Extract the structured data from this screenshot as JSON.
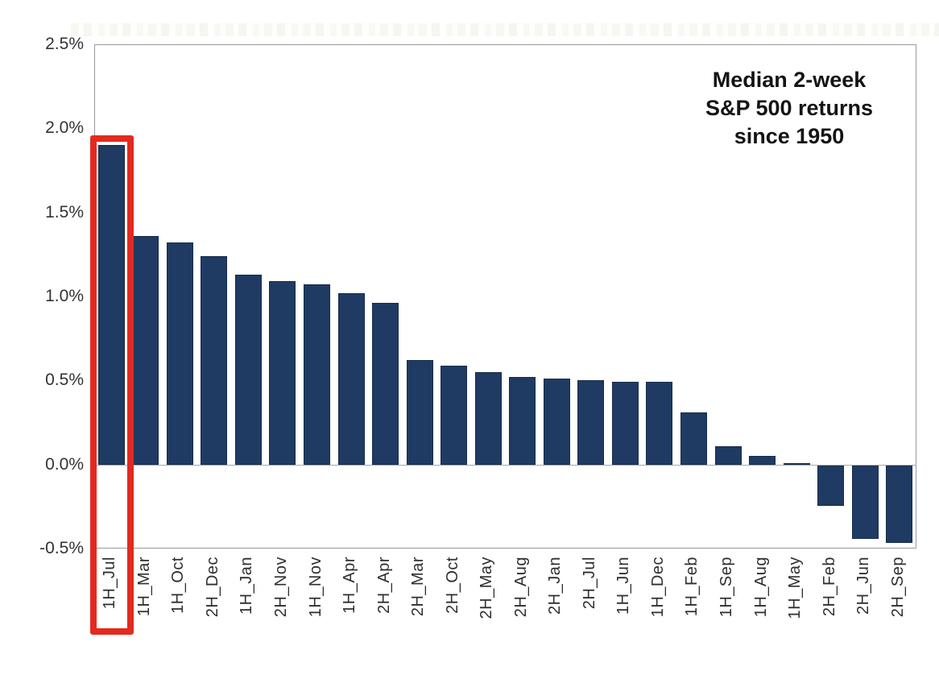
{
  "chart_data": {
    "type": "bar",
    "title": "Median 2-week S&P 500 returns since 1950",
    "title_lines": [
      "Median 2-week",
      "S&P 500 returns",
      "since 1950"
    ],
    "categories": [
      "1H_Jul",
      "1H_Mar",
      "1H_Oct",
      "2H_Dec",
      "1H_Jan",
      "2H_Nov",
      "1H_Nov",
      "1H_Apr",
      "2H_Apr",
      "2H_Mar",
      "2H_Oct",
      "2H_May",
      "2H_Aug",
      "2H_Jan",
      "2H_Jul",
      "1H_Jun",
      "1H_Dec",
      "1H_Feb",
      "1H_Sep",
      "1H_Aug",
      "1H_May",
      "2H_Feb",
      "2H_Jun",
      "2H_Sep"
    ],
    "values": [
      1.9,
      1.36,
      1.32,
      1.24,
      1.13,
      1.09,
      1.07,
      1.02,
      0.96,
      0.62,
      0.59,
      0.55,
      0.52,
      0.51,
      0.5,
      0.49,
      0.49,
      0.31,
      0.11,
      0.05,
      0.0,
      -0.24,
      -0.44,
      -0.46
    ],
    "unit": "%",
    "xlabel": "",
    "ylabel": "",
    "ylim": [
      -0.5,
      2.5
    ],
    "yticks": [
      {
        "value": 2.5,
        "label": "2.5%"
      },
      {
        "value": 2.0,
        "label": "2.0%"
      },
      {
        "value": 1.5,
        "label": "1.5%"
      },
      {
        "value": 1.0,
        "label": "1.0%"
      },
      {
        "value": 0.5,
        "label": "0.5%"
      },
      {
        "value": 0.0,
        "label": "0.0%"
      },
      {
        "value": -0.5,
        "label": "-0.5%"
      }
    ],
    "grid": "zero-baseline-only",
    "legend_position": "none",
    "bar_color": "#1f3b63",
    "highlight": {
      "category": "1H_Jul",
      "box_color": "#e32a20"
    }
  }
}
